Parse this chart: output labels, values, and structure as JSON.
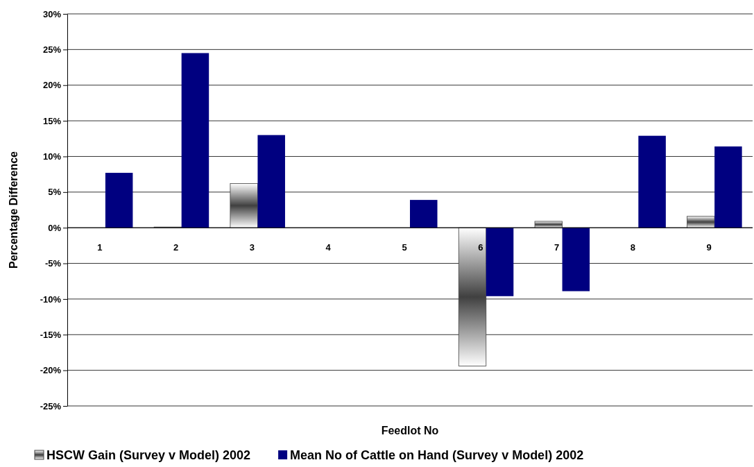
{
  "chart_data": {
    "type": "bar",
    "xlabel": "Feedlot No",
    "ylabel": "Percentage Difference",
    "categories": [
      "1",
      "2",
      "3",
      "4",
      "5",
      "6",
      "7",
      "8",
      "9"
    ],
    "series": [
      {
        "name": "HSCW Gain (Survey v Model) 2002",
        "color": "#404040",
        "values": [
          0,
          0.1,
          6.2,
          0,
          0,
          -19.4,
          0.9,
          0,
          1.6
        ]
      },
      {
        "name": "Mean No of Cattle on Hand (Survey v Model) 2002",
        "color": "#000080",
        "values": [
          7.7,
          24.5,
          13.0,
          0,
          3.9,
          -9.6,
          -8.9,
          12.9,
          11.4
        ]
      }
    ],
    "ylim": [
      -25,
      30
    ],
    "yticks": [
      {
        "value": -25,
        "label": "-25%"
      },
      {
        "value": -20,
        "label": "-20%"
      },
      {
        "value": -15,
        "label": "-15%"
      },
      {
        "value": -10,
        "label": "-10%"
      },
      {
        "value": -5,
        "label": "-5%"
      },
      {
        "value": 0,
        "label": "0%"
      },
      {
        "value": 5,
        "label": "5%"
      },
      {
        "value": 10,
        "label": "10%"
      },
      {
        "value": 15,
        "label": "15%"
      },
      {
        "value": 20,
        "label": "20%"
      },
      {
        "value": 25,
        "label": "25%"
      },
      {
        "value": 30,
        "label": "30%"
      }
    ],
    "grid": "y",
    "legend": "bottom"
  }
}
